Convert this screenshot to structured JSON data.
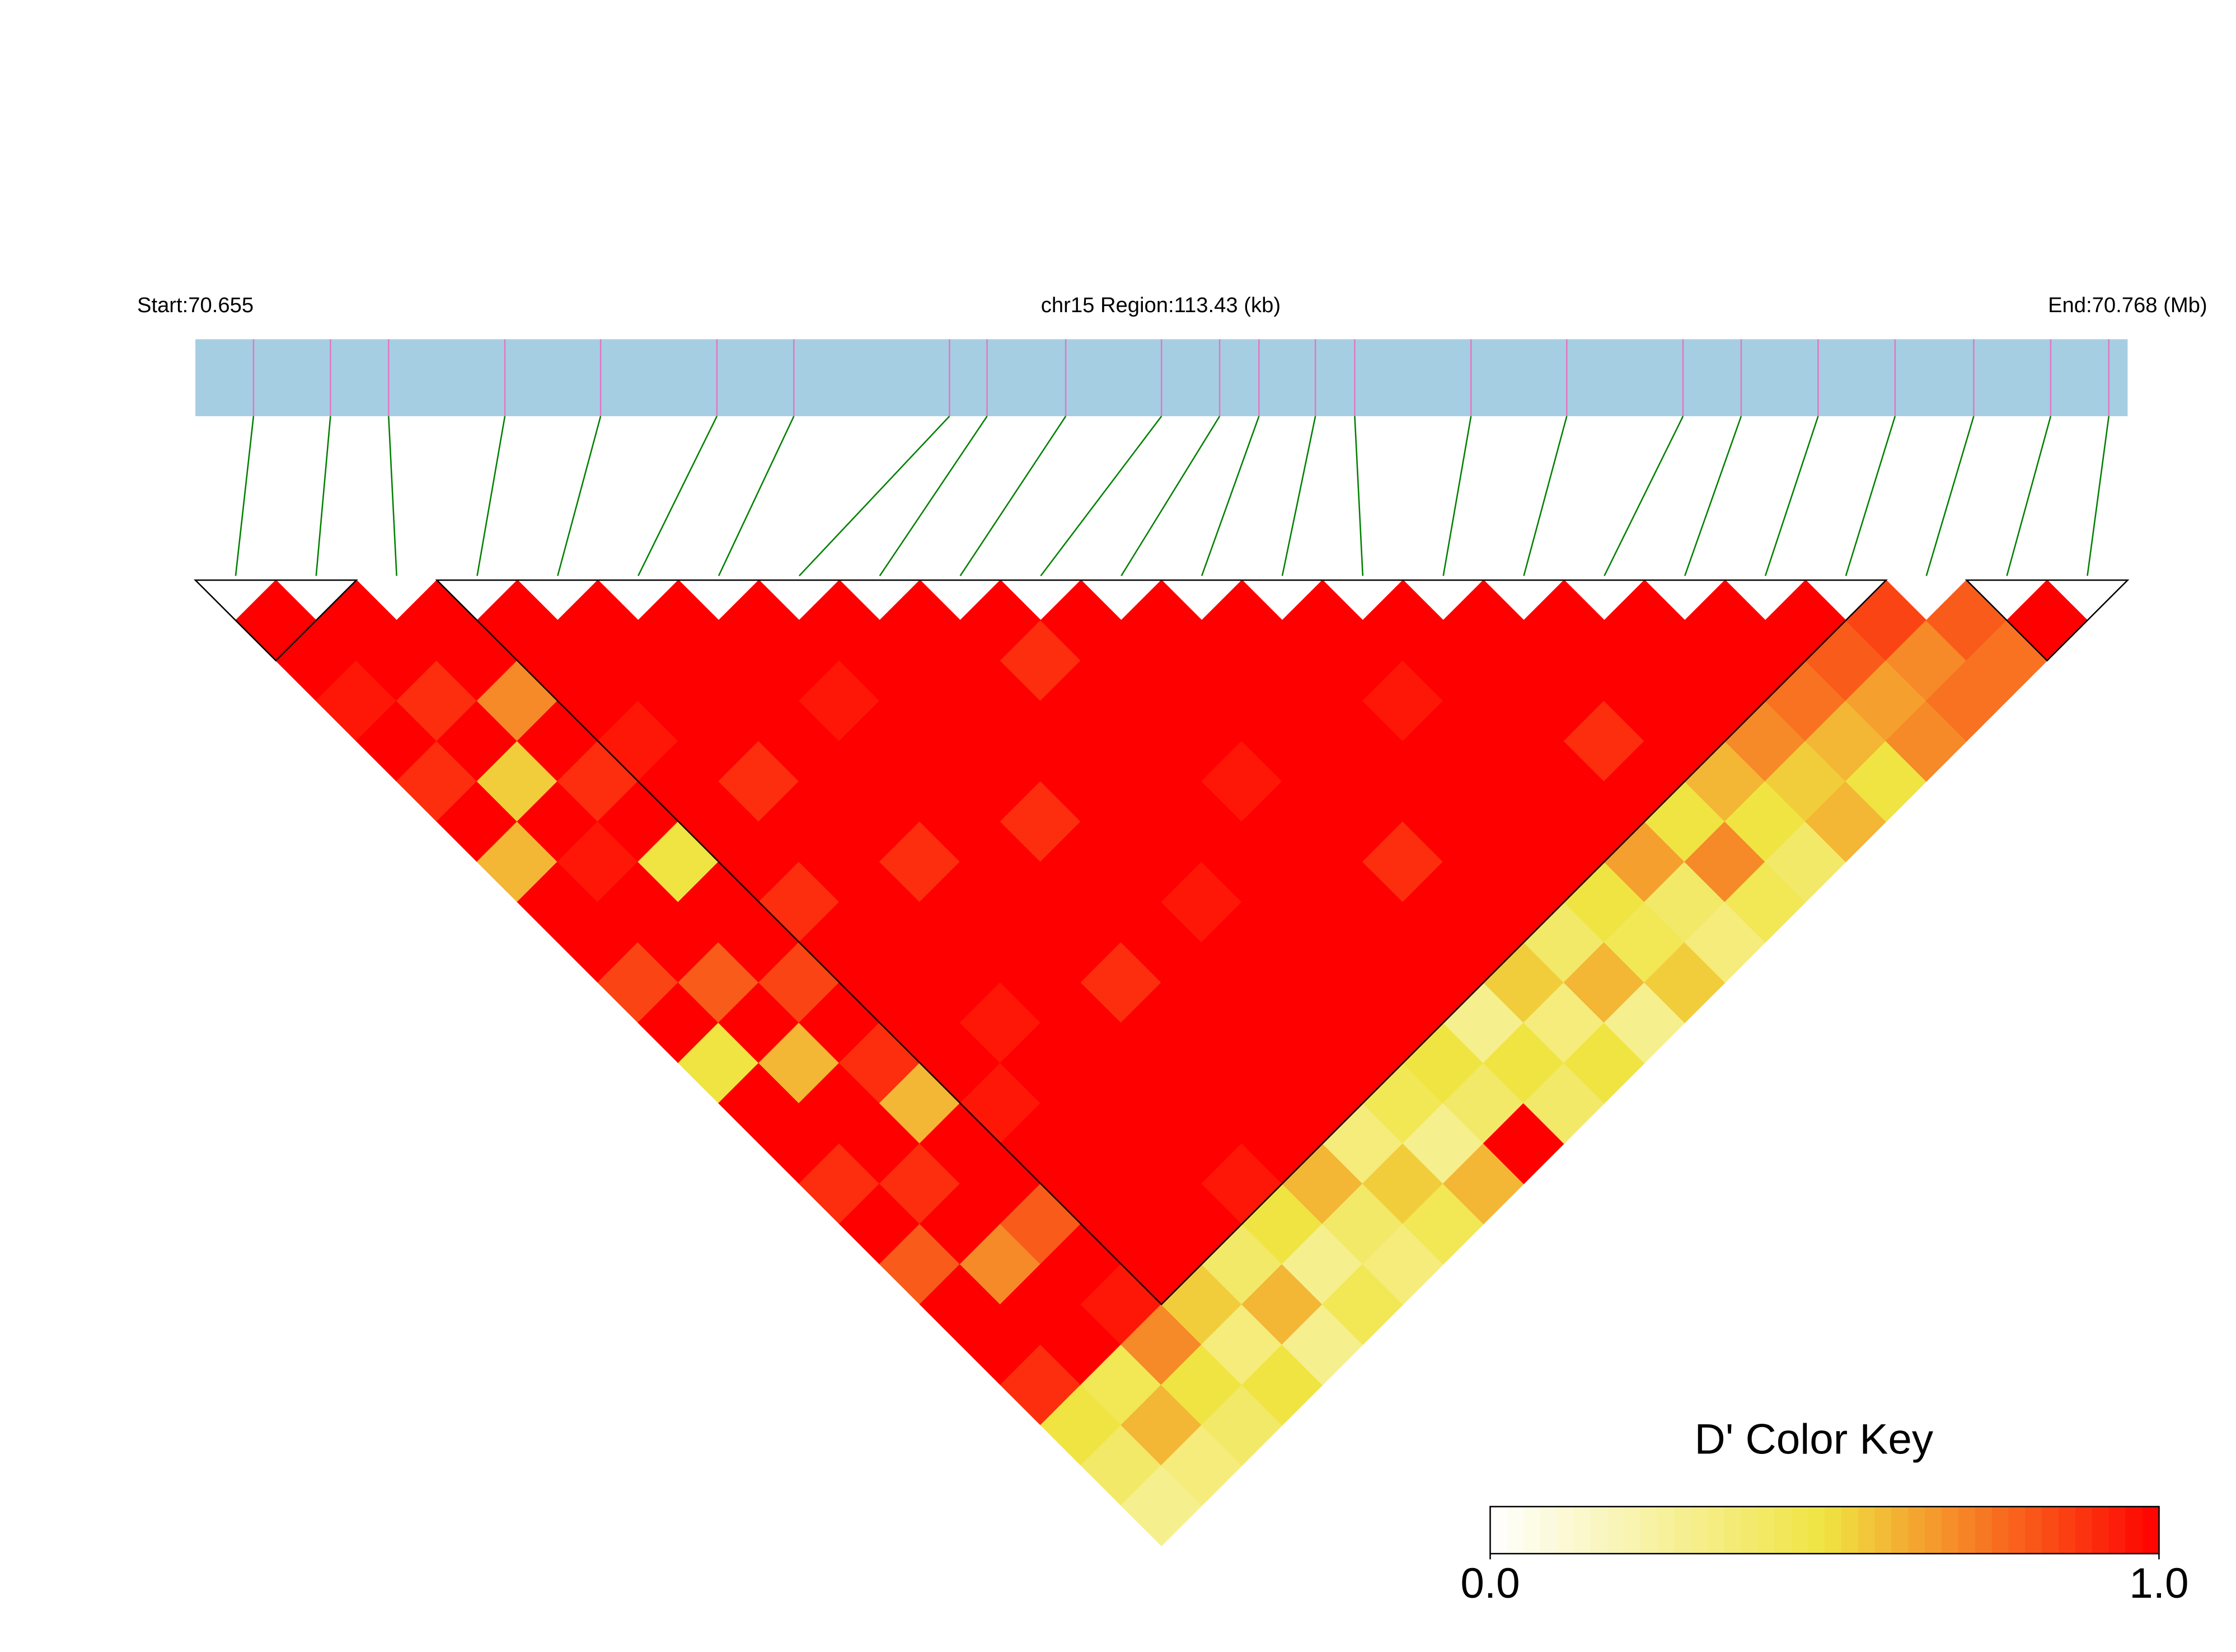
{
  "chart_data": {
    "type": "ld_heatmap",
    "start_label": "Start:70.655",
    "region_label": "chr15 Region:113.43 (kb)",
    "end_label": "End:70.768 (Mb)",
    "xlim": [
      70.655,
      70.768
    ],
    "snp_positions": [
      70.6584,
      70.6629,
      70.6663,
      70.6731,
      70.6787,
      70.6855,
      70.69,
      70.6991,
      70.7013,
      70.7059,
      70.7115,
      70.7149,
      70.7172,
      70.7205,
      70.7228,
      70.7296,
      70.7352,
      70.742,
      70.7454,
      70.7499,
      70.7544,
      70.759,
      70.7635,
      70.7669
    ],
    "dprime": [
      [
        1,
        1,
        0.95,
        1,
        0.9,
        1,
        0.6,
        1,
        1,
        0.85,
        1,
        0.5,
        1,
        1,
        0.9,
        1,
        0.8,
        1,
        1,
        0.9,
        0.5,
        0.4,
        0.3
      ],
      [
        1,
        1,
        0.9,
        1,
        0.55,
        1,
        0.95,
        1,
        1,
        0.8,
        1,
        0.6,
        1,
        1,
        0.9,
        1,
        0.7,
        1,
        1,
        0.45,
        0.6,
        0.35
      ],
      [
        1,
        1,
        0.7,
        1,
        0.9,
        1,
        0.5,
        1,
        1,
        0.85,
        1,
        0.9,
        0.6,
        1,
        1,
        0.8,
        1,
        0.95,
        0.7,
        0.5,
        0.4
      ],
      [
        1,
        1,
        1,
        0.95,
        1,
        1,
        1,
        0.9,
        1,
        1,
        1,
        1,
        0.95,
        1,
        1,
        1,
        1,
        0.55,
        0.35,
        0.5
      ],
      [
        1,
        1,
        1,
        1,
        0.9,
        1,
        1,
        1,
        1,
        1,
        0.95,
        1,
        1,
        1,
        1,
        1,
        0.4,
        0.6,
        0.3
      ],
      [
        1,
        1,
        1,
        1,
        1,
        1,
        0.9,
        1,
        1,
        1,
        1,
        1,
        1,
        1,
        0.95,
        0.5,
        0.3,
        0.45
      ],
      [
        1,
        1,
        0.95,
        1,
        1,
        1,
        1,
        1,
        1,
        0.9,
        1,
        1,
        1,
        1,
        0.6,
        0.4,
        0.35
      ],
      [
        1,
        1,
        1,
        1,
        1,
        0.9,
        1,
        1,
        1,
        1,
        1,
        1,
        1,
        0.35,
        0.55,
        0.45
      ],
      [
        1,
        1,
        1,
        1,
        1,
        1,
        1,
        0.95,
        1,
        1,
        1,
        1,
        0.45,
        0.3,
        0.6
      ],
      [
        1,
        0.9,
        1,
        1,
        1,
        1,
        1,
        1,
        1,
        1,
        1,
        0.5,
        0.4,
        1
      ],
      [
        1,
        1,
        1,
        1,
        0.95,
        1,
        1,
        1,
        1,
        1,
        0.3,
        0.5,
        0.4
      ],
      [
        1,
        1,
        1,
        1,
        1,
        1,
        0.9,
        1,
        1,
        0.55,
        0.35,
        0.5
      ],
      [
        1,
        1,
        1,
        1,
        1,
        1,
        1,
        1,
        0.4,
        0.6,
        0.3
      ],
      [
        1,
        1,
        0.95,
        1,
        1,
        1,
        1,
        0.5,
        0.45,
        0.55
      ],
      [
        1,
        1,
        1,
        1,
        1,
        1,
        0.65,
        0.4,
        0.35
      ],
      [
        1,
        1,
        1,
        0.9,
        1,
        0.5,
        0.7,
        0.45
      ],
      [
        1,
        1,
        1,
        1,
        0.6,
        0.5,
        0.4
      ],
      [
        1,
        1,
        1,
        0.7,
        0.55,
        0.6
      ],
      [
        1,
        1,
        0.75,
        0.6,
        0.5
      ],
      [
        1,
        0.8,
        0.65,
        0.7
      ],
      [
        0.85,
        0.7,
        0.75
      ],
      [
        0.8,
        0.75
      ],
      [
        1
      ]
    ],
    "blocks": [
      [
        0,
        1
      ],
      [
        3,
        20
      ],
      [
        22,
        23
      ]
    ],
    "color_scale": [
      "#ffffff",
      "#f0e442",
      "#ff0000"
    ],
    "key_title": "D' Color Key",
    "key_ticks": [
      {
        "value": 0,
        "label": "0.0"
      },
      {
        "value": 1,
        "label": "1.0"
      }
    ]
  }
}
